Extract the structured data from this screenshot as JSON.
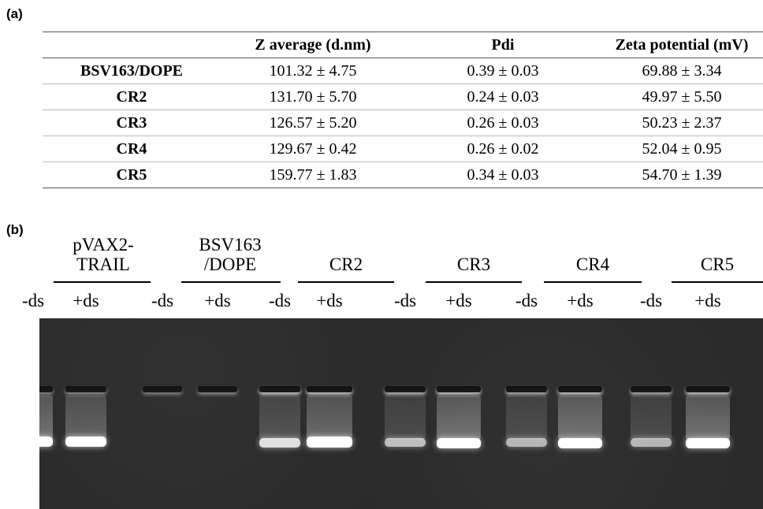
{
  "panel_a_label": "(a)",
  "panel_b_label": "(b)",
  "table": {
    "headers": [
      "",
      "Z average (d.nm)",
      "Pdi",
      "Zeta potential (mV)"
    ],
    "rows": [
      [
        "BSV163/DOPE",
        "101.32 ± 4.75",
        "0.39 ± 0.03",
        "69.88 ± 3.34"
      ],
      [
        "CR2",
        "131.70 ± 5.70",
        "0.24 ± 0.03",
        "49.97 ± 5.50"
      ],
      [
        "CR3",
        "126.57 ± 5.20",
        "0.26 ± 0.03",
        "50.23 ± 2.37"
      ],
      [
        "CR4",
        "129.67 ± 0.42",
        "0.26 ± 0.02",
        "52.04 ± 0.95"
      ],
      [
        "CR5",
        "159.77 ± 1.83",
        "0.34 ± 0.03",
        "54.70 ± 1.39"
      ]
    ]
  },
  "gel": {
    "groups": [
      {
        "title_line1": "pVAX2-",
        "title_line2": "TRAIL",
        "lanes": [
          "-ds",
          "+ds"
        ]
      },
      {
        "title_line1": "BSV163",
        "title_line2": "/DOPE",
        "lanes": [
          "-ds",
          "+ds"
        ]
      },
      {
        "title_line1": "",
        "title_line2": "CR2",
        "lanes": [
          "-ds",
          "+ds"
        ]
      },
      {
        "title_line1": "",
        "title_line2": "CR3",
        "lanes": [
          "-ds",
          "+ds"
        ]
      },
      {
        "title_line1": "",
        "title_line2": "CR4",
        "lanes": [
          "-ds",
          "+ds"
        ]
      },
      {
        "title_line1": "",
        "title_line2": "CR5",
        "lanes": [
          "-ds",
          "+ds"
        ]
      }
    ],
    "colors": {
      "gel_background": "#2a2a2a",
      "band": "#ffffff",
      "well": "#111111"
    }
  }
}
